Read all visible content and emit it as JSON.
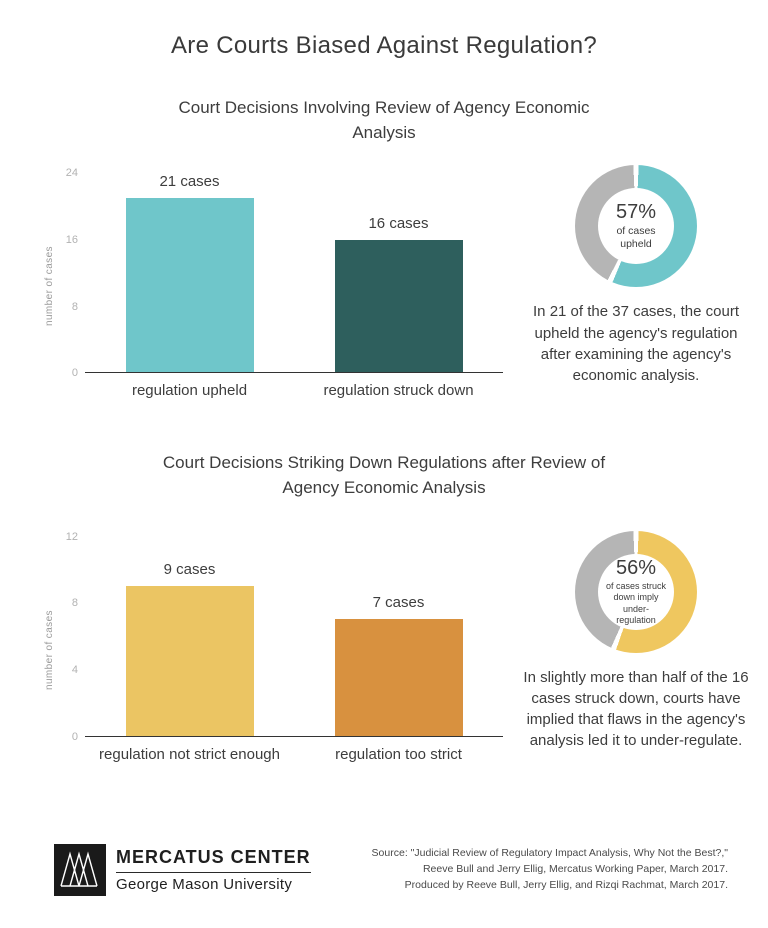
{
  "page": {
    "title": "Are Courts Biased Against Regulation?"
  },
  "chart_data": [
    {
      "type": "bar",
      "title": "Court Decisions Involving Review of Agency Economic Analysis",
      "categories": [
        "regulation upheld",
        "regulation struck down"
      ],
      "values": [
        21,
        16
      ],
      "bar_labels": [
        "21 cases",
        "16 cases"
      ],
      "bar_colors": [
        "#6fc6ca",
        "#2e5f5d"
      ],
      "ylabel": "number of cases",
      "yticks": [
        0,
        8,
        16,
        24
      ],
      "ylim": [
        0,
        24
      ],
      "grid": false,
      "legend": "none"
    },
    {
      "type": "pie",
      "subtype": "donut",
      "percent": 57,
      "center_label": "57%",
      "center_sublabel": "of cases upheld",
      "value_color": "#6fc6ca",
      "remainder_color": "#b5b5b5",
      "caption": "In 21 of the 37 cases, the court upheld the agency's regulation after examining the agency's economic analysis."
    },
    {
      "type": "bar",
      "title": "Court Decisions Striking Down Regulations after Review of Agency Economic Analysis",
      "categories": [
        "regulation not strict enough",
        "regulation too strict"
      ],
      "values": [
        9,
        7
      ],
      "bar_labels": [
        "9 cases",
        "7 cases"
      ],
      "bar_colors": [
        "#ebc563",
        "#d8913f"
      ],
      "ylabel": "number of cases",
      "yticks": [
        0,
        4,
        8,
        12
      ],
      "ylim": [
        0,
        12
      ],
      "grid": false,
      "legend": "none"
    },
    {
      "type": "pie",
      "subtype": "donut",
      "percent": 56,
      "center_label": "56%",
      "center_sublabel": "of cases struck down imply under-regulation",
      "value_color": "#efc75f",
      "remainder_color": "#b5b5b5",
      "caption": "In slightly more than half of the 16 cases struck down, courts have implied that flaws in the agency's analysis led it to under-regulate."
    }
  ],
  "footer": {
    "brand_title": "MERCATUS CENTER",
    "brand_subtitle": "George Mason University",
    "source_lines": [
      "Source: \"Judicial Review of Regulatory Impact Analysis, Why Not the Best?,\"",
      "Reeve Bull and Jerry Ellig, Mercatus Working Paper, March 2017.",
      "Produced by Reeve Bull, Jerry Ellig, and Rizqi Rachmat, March 2017."
    ]
  }
}
